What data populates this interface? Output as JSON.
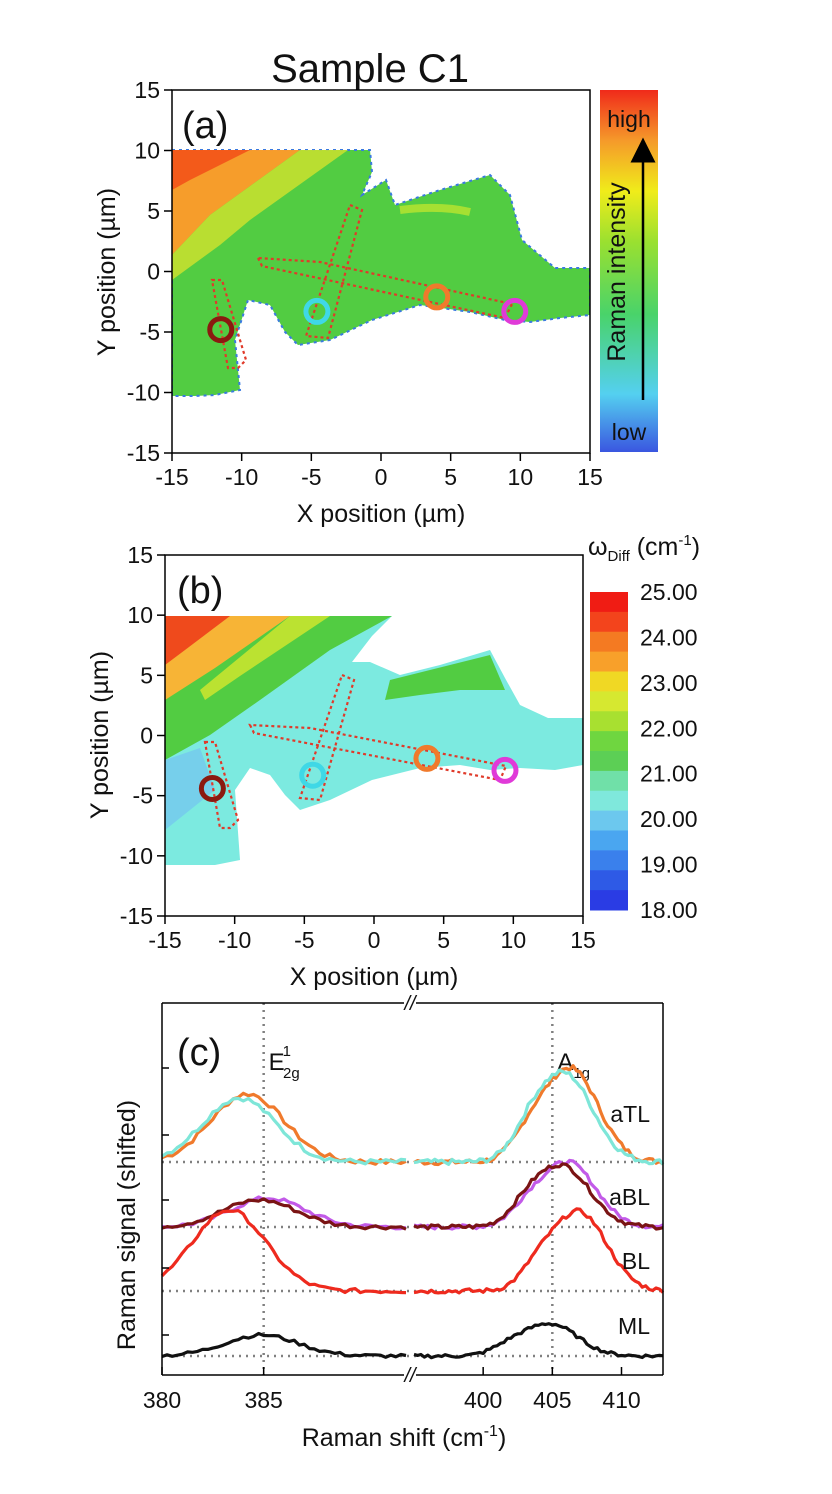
{
  "title": "Sample C1",
  "colors": {
    "ring_dark_red": "#8b1a10",
    "ring_cyan": "#3fd8e6",
    "ring_orange": "#f07a2c",
    "ring_magenta": "#e03ad8",
    "dotted_outline": "#e03a2a",
    "curve_orange": "#f07a2c",
    "curve_cyan": "#7ee6d8",
    "curve_purple": "#c25ae8",
    "curve_dark_red": "#7a1414",
    "curve_red": "#ee2a1e",
    "curve_black": "#111111",
    "guide_gray": "#808080"
  },
  "chart_data": [
    {
      "panel": "(a)",
      "type": "heatmap",
      "xlabel": "X position (µm)",
      "ylabel": "Y position (µm)",
      "xlim": [
        -15,
        15
      ],
      "ylim": [
        -15,
        15
      ],
      "xticks": [
        -15,
        -10,
        -5,
        0,
        5,
        10,
        15
      ],
      "yticks": [
        15,
        10,
        5,
        0,
        -5,
        -10,
        -15
      ],
      "colorbar": {
        "label": "Raman intensity",
        "high": "high",
        "low": "low"
      },
      "markers": [
        {
          "color": "dark-red",
          "x": -11.5,
          "y": -4.8
        },
        {
          "color": "cyan",
          "x": -4.6,
          "y": -3.3
        },
        {
          "color": "orange",
          "x": 4.0,
          "y": -2.1
        },
        {
          "color": "magenta",
          "x": 9.6,
          "y": -3.3
        }
      ]
    },
    {
      "panel": "(b)",
      "type": "heatmap",
      "xlabel": "X position (µm)",
      "ylabel": "Y position (µm)",
      "xlim": [
        -15,
        15
      ],
      "ylim": [
        -15,
        15
      ],
      "xticks": [
        -15,
        -10,
        -5,
        0,
        5,
        10,
        15
      ],
      "yticks": [
        15,
        10,
        5,
        0,
        -5,
        -10,
        -15
      ],
      "colorbar": {
        "label_main": "ω",
        "label_sub": "Diff",
        "label_unit": " (cm",
        "label_sup": "-1",
        "label_close": ")",
        "ticks": [
          "25.00",
          "24.00",
          "23.00",
          "22.00",
          "21.00",
          "20.00",
          "19.00",
          "18.00"
        ],
        "range": [
          18,
          25
        ]
      },
      "markers": [
        {
          "color": "dark-red",
          "x": -11.6,
          "y": -4.4
        },
        {
          "color": "cyan",
          "x": -4.4,
          "y": -3.3
        },
        {
          "color": "orange",
          "x": 3.8,
          "y": -1.9
        },
        {
          "color": "magenta",
          "x": 9.4,
          "y": -2.9
        }
      ]
    },
    {
      "panel": "(c)",
      "type": "line",
      "xlabel": "Raman shift (cm",
      "xlabel_sup": "-1",
      "xlabel_close": ")",
      "ylabel": "Raman signal (shifted)",
      "xlim_left": [
        380,
        392
      ],
      "xlim_right": [
        395,
        413
      ],
      "xticks_left": [
        380,
        385
      ],
      "xticks_right": [
        400,
        405,
        410
      ],
      "break_mark": "//",
      "guides": [
        {
          "x": 385,
          "main": "E",
          "sub": "2g",
          "sup": "1"
        },
        {
          "x": 405,
          "main": "A",
          "sub": "1g",
          "sup": ""
        }
      ],
      "series": [
        {
          "name": "aTL",
          "label": "aTL",
          "offset": 3,
          "colors": [
            "orange",
            "cyan"
          ],
          "peak_left": {
            "x": 384.2,
            "height": 0.62
          },
          "peak_right": {
            "x": 406.3,
            "height": 0.85
          }
        },
        {
          "name": "aBL",
          "label": "aBL",
          "offset": 2,
          "colors": [
            "purple",
            "dark-red"
          ],
          "peak_left": {
            "x": 385.2,
            "height": 0.32
          },
          "peak_right": {
            "x": 406.1,
            "height": 0.72
          }
        },
        {
          "name": "BL",
          "label": "BL",
          "offset": 1,
          "colors": [
            "red"
          ],
          "peak_left": {
            "x": 383.3,
            "height": 0.9
          },
          "peak_right": {
            "x": 406.9,
            "height": 0.88
          }
        },
        {
          "name": "ML",
          "label": "ML",
          "offset": 0,
          "colors": [
            "black"
          ],
          "peak_left": {
            "x": 384.9,
            "height": 0.3
          },
          "peak_right": {
            "x": 404.8,
            "height": 0.46
          }
        }
      ]
    }
  ]
}
